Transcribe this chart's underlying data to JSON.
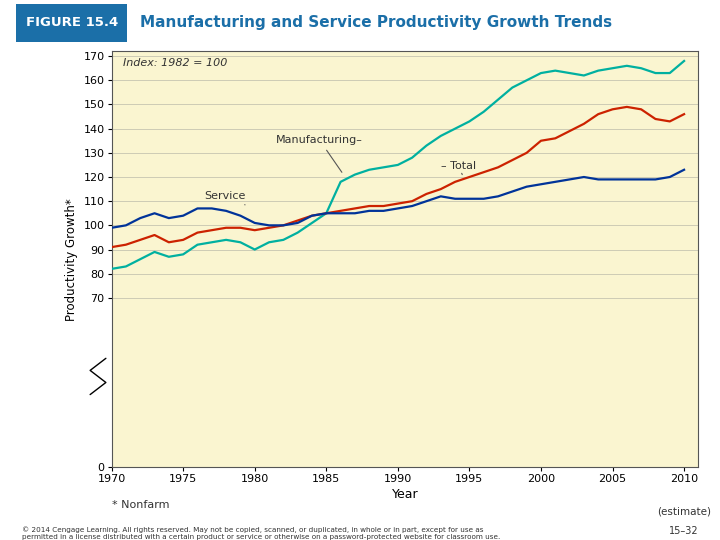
{
  "title": "Manufacturing and Service Productivity Growth Trends",
  "figure_label": "FIGURE 15.4",
  "xlabel": "Year",
  "ylabel": "Productivity Growth*",
  "footnote": "* Nonfarm",
  "copyright": "© 2014 Cengage Learning. All rights reserved. May not be copied, scanned, or duplicated, in whole or in part, except for use as\npermitted in a license distributed with a certain product or service or otherwise on a password-protected website for classroom use.",
  "page_number": "15–32",
  "index_label": "Index: 1982 = 100",
  "estimate_label": "(estimate)",
  "ylim": [
    0,
    172
  ],
  "xlim": [
    1970,
    2011
  ],
  "yticks": [
    0,
    70,
    80,
    90,
    100,
    110,
    120,
    130,
    140,
    150,
    160,
    170
  ],
  "xticks": [
    1970,
    1975,
    1980,
    1985,
    1990,
    1995,
    2000,
    2005,
    2010
  ],
  "bg_color": "#FAF5D0",
  "fig_bg": "#FFFFFF",
  "header_bg": "#1B6FA8",
  "header_text_color": "#FFFFFF",
  "title_color": "#1B6FA8",
  "manufacturing_color": "#00B0A0",
  "total_color": "#CC2200",
  "service_color": "#003399",
  "years": [
    1970,
    1971,
    1972,
    1973,
    1974,
    1975,
    1976,
    1977,
    1978,
    1979,
    1980,
    1981,
    1982,
    1983,
    1984,
    1985,
    1986,
    1987,
    1988,
    1989,
    1990,
    1991,
    1992,
    1993,
    1994,
    1995,
    1996,
    1997,
    1998,
    1999,
    2000,
    2001,
    2002,
    2003,
    2004,
    2005,
    2006,
    2007,
    2008,
    2009,
    2010
  ],
  "manufacturing": [
    82,
    83,
    86,
    89,
    87,
    88,
    92,
    93,
    94,
    93,
    90,
    93,
    94,
    97,
    101,
    105,
    118,
    121,
    123,
    124,
    125,
    128,
    133,
    137,
    140,
    143,
    147,
    152,
    157,
    160,
    163,
    164,
    163,
    162,
    164,
    165,
    166,
    165,
    163,
    163,
    168
  ],
  "total": [
    91,
    92,
    94,
    96,
    93,
    94,
    97,
    98,
    99,
    99,
    98,
    99,
    100,
    102,
    104,
    105,
    106,
    107,
    108,
    108,
    109,
    110,
    113,
    115,
    118,
    120,
    122,
    124,
    127,
    130,
    135,
    136,
    139,
    142,
    146,
    148,
    149,
    148,
    144,
    143,
    146
  ],
  "service": [
    99,
    100,
    103,
    105,
    103,
    104,
    107,
    107,
    106,
    104,
    101,
    100,
    100,
    101,
    104,
    105,
    105,
    105,
    106,
    106,
    107,
    108,
    110,
    112,
    111,
    111,
    111,
    112,
    114,
    116,
    117,
    118,
    119,
    120,
    119,
    119,
    119,
    119,
    119,
    120,
    123
  ]
}
